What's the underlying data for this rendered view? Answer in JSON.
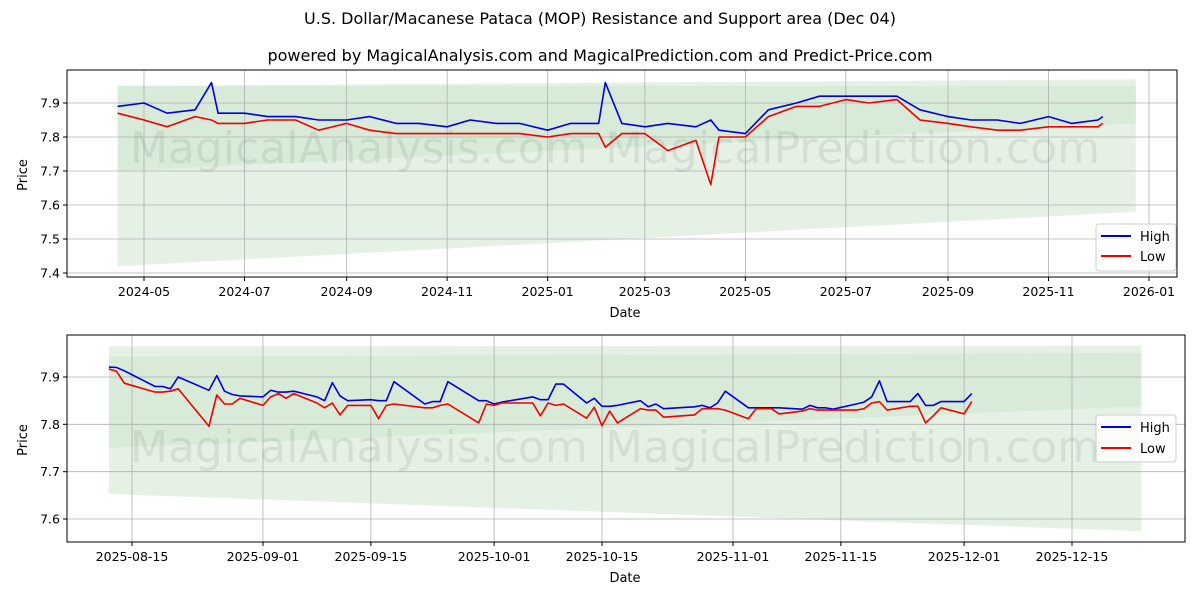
{
  "header": {
    "title": "U.S. Dollar/Macanese Pataca (MOP) Resistance and Support area (Dec 04)",
    "subtitle": "powered by MagicalAnalysis.com and MagicalPrediction.com and Predict-Price.com"
  },
  "watermarks": [
    "MagicalAnalysis.com",
    "MagicalPrediction.com"
  ],
  "colors": {
    "high": "#0000dd",
    "low": "#ee0000",
    "band_outer": "#e3f0e3",
    "band_inner": "#cce5cc",
    "grid": "#b0b0b0"
  },
  "chart_data": [
    {
      "type": "line",
      "title": "",
      "xlabel": "Date",
      "ylabel": "Price",
      "ylim": [
        7.39,
        7.99
      ],
      "grid": true,
      "legend_position": "lower right",
      "x_ticks": [
        "2024-05",
        "2024-07",
        "2024-09",
        "2024-11",
        "2025-01",
        "2025-03",
        "2025-05",
        "2025-07",
        "2025-09",
        "2025-11",
        "2026-01"
      ],
      "y_ticks": [
        "7.4",
        "7.5",
        "7.6",
        "7.7",
        "7.8",
        "7.9"
      ],
      "legend": [
        "High",
        "Low"
      ],
      "x": [
        "2024-04-15",
        "2024-05-01",
        "2024-05-15",
        "2024-06-01",
        "2024-06-11",
        "2024-06-15",
        "2024-07-01",
        "2024-07-15",
        "2024-08-01",
        "2024-08-15",
        "2024-09-01",
        "2024-09-15",
        "2024-10-01",
        "2024-10-15",
        "2024-11-01",
        "2024-11-15",
        "2024-12-01",
        "2024-12-15",
        "2025-01-01",
        "2025-01-15",
        "2025-02-01",
        "2025-02-05",
        "2025-02-15",
        "2025-03-01",
        "2025-03-15",
        "2025-04-01",
        "2025-04-10",
        "2025-04-15",
        "2025-05-01",
        "2025-05-15",
        "2025-06-01",
        "2025-06-15",
        "2025-07-01",
        "2025-07-15",
        "2025-08-01",
        "2025-08-15",
        "2025-09-01",
        "2025-09-15",
        "2025-10-01",
        "2025-10-15",
        "2025-11-01",
        "2025-11-15",
        "2025-12-01",
        "2025-12-04"
      ],
      "series": [
        {
          "name": "High",
          "values": [
            7.89,
            7.9,
            7.87,
            7.88,
            7.96,
            7.87,
            7.87,
            7.86,
            7.86,
            7.85,
            7.85,
            7.86,
            7.84,
            7.84,
            7.83,
            7.85,
            7.84,
            7.84,
            7.82,
            7.84,
            7.84,
            7.96,
            7.84,
            7.83,
            7.84,
            7.83,
            7.85,
            7.82,
            7.81,
            7.88,
            7.9,
            7.92,
            7.92,
            7.92,
            7.92,
            7.88,
            7.86,
            7.85,
            7.85,
            7.84,
            7.86,
            7.84,
            7.85,
            7.86
          ]
        },
        {
          "name": "Low",
          "values": [
            7.87,
            7.85,
            7.83,
            7.86,
            7.85,
            7.84,
            7.84,
            7.85,
            7.85,
            7.82,
            7.84,
            7.82,
            7.81,
            7.81,
            7.81,
            7.81,
            7.81,
            7.81,
            7.8,
            7.81,
            7.81,
            7.77,
            7.81,
            7.81,
            7.76,
            7.79,
            7.66,
            7.8,
            7.8,
            7.86,
            7.89,
            7.89,
            7.91,
            7.9,
            7.91,
            7.85,
            7.84,
            7.83,
            7.82,
            7.82,
            7.83,
            7.83,
            7.83,
            7.84
          ]
        }
      ],
      "bands": {
        "outer": {
          "x_start": "2024-04-15",
          "x_end": "2025-12-24",
          "upper": [
            7.95,
            7.97
          ],
          "lower": [
            7.42,
            7.58
          ]
        },
        "inner": {
          "x_start": "2024-04-15",
          "x_end": "2025-12-24",
          "upper": [
            7.95,
            7.95
          ],
          "lower": [
            7.7,
            7.84
          ]
        }
      }
    },
    {
      "type": "line",
      "title": "",
      "xlabel": "Date",
      "ylabel": "Price",
      "ylim": [
        7.555,
        7.985
      ],
      "grid": true,
      "legend_position": "center right",
      "x_ticks": [
        "2025-08-15",
        "2025-09-01",
        "2025-09-15",
        "2025-10-01",
        "2025-10-15",
        "2025-11-01",
        "2025-11-15",
        "2025-12-01",
        "2025-12-15"
      ],
      "y_ticks": [
        "7.6",
        "7.7",
        "7.8",
        "7.9"
      ],
      "legend": [
        "High",
        "Low"
      ],
      "x": [
        "2025-08-12",
        "2025-08-13",
        "2025-08-14",
        "2025-08-18",
        "2025-08-19",
        "2025-08-20",
        "2025-08-21",
        "2025-08-25",
        "2025-08-26",
        "2025-08-27",
        "2025-08-28",
        "2025-08-29",
        "2025-09-01",
        "2025-09-02",
        "2025-09-03",
        "2025-09-04",
        "2025-09-05",
        "2025-09-08",
        "2025-09-09",
        "2025-09-10",
        "2025-09-11",
        "2025-09-12",
        "2025-09-15",
        "2025-09-16",
        "2025-09-17",
        "2025-09-18",
        "2025-09-22",
        "2025-09-23",
        "2025-09-24",
        "2025-09-25",
        "2025-09-29",
        "2025-09-30",
        "2025-10-01",
        "2025-10-02",
        "2025-10-06",
        "2025-10-07",
        "2025-10-08",
        "2025-10-09",
        "2025-10-10",
        "2025-10-13",
        "2025-10-14",
        "2025-10-15",
        "2025-10-16",
        "2025-10-17",
        "2025-10-20",
        "2025-10-21",
        "2025-10-22",
        "2025-10-23",
        "2025-10-27",
        "2025-10-28",
        "2025-10-29",
        "2025-10-30",
        "2025-10-31",
        "2025-11-03",
        "2025-11-04",
        "2025-11-05",
        "2025-11-06",
        "2025-11-07",
        "2025-11-10",
        "2025-11-11",
        "2025-11-12",
        "2025-11-13",
        "2025-11-14",
        "2025-11-17",
        "2025-11-18",
        "2025-11-19",
        "2025-11-20",
        "2025-11-21",
        "2025-11-24",
        "2025-11-25",
        "2025-11-26",
        "2025-11-27",
        "2025-11-28",
        "2025-12-01",
        "2025-12-02"
      ],
      "series": [
        {
          "name": "High",
          "values": [
            7.921,
            7.92,
            7.913,
            7.88,
            7.88,
            7.875,
            7.9,
            7.872,
            7.903,
            7.87,
            7.863,
            7.86,
            7.858,
            7.872,
            7.868,
            7.868,
            7.87,
            7.858,
            7.85,
            7.888,
            7.86,
            7.85,
            7.852,
            7.85,
            7.85,
            7.89,
            7.843,
            7.848,
            7.848,
            7.89,
            7.85,
            7.85,
            7.843,
            7.847,
            7.858,
            7.852,
            7.852,
            7.885,
            7.885,
            7.845,
            7.855,
            7.838,
            7.838,
            7.84,
            7.85,
            7.837,
            7.843,
            7.833,
            7.837,
            7.84,
            7.835,
            7.845,
            7.87,
            7.835,
            7.835,
            7.835,
            7.835,
            7.835,
            7.832,
            7.84,
            7.835,
            7.835,
            7.832,
            7.843,
            7.847,
            7.858,
            7.892,
            7.848,
            7.848,
            7.865,
            7.84,
            7.84,
            7.848,
            7.848,
            7.865
          ]
        },
        {
          "name": "Low",
          "values": [
            7.917,
            7.912,
            7.887,
            7.868,
            7.868,
            7.87,
            7.875,
            7.796,
            7.862,
            7.843,
            7.843,
            7.855,
            7.84,
            7.858,
            7.865,
            7.855,
            7.865,
            7.845,
            7.835,
            7.845,
            7.82,
            7.84,
            7.84,
            7.812,
            7.84,
            7.843,
            7.835,
            7.835,
            7.84,
            7.843,
            7.803,
            7.843,
            7.84,
            7.845,
            7.845,
            7.818,
            7.845,
            7.84,
            7.843,
            7.813,
            7.836,
            7.797,
            7.828,
            7.803,
            7.833,
            7.83,
            7.83,
            7.815,
            7.82,
            7.833,
            7.833,
            7.833,
            7.83,
            7.812,
            7.833,
            7.833,
            7.833,
            7.822,
            7.828,
            7.833,
            7.83,
            7.83,
            7.83,
            7.83,
            7.833,
            7.845,
            7.848,
            7.83,
            7.838,
            7.838,
            7.803,
            7.818,
            7.835,
            7.822,
            7.848
          ]
        }
      ],
      "bands": {
        "outer": {
          "x_start": "2025-08-12",
          "x_end": "2025-12-24",
          "upper": [
            7.965,
            7.966
          ],
          "lower": [
            7.653,
            7.574
          ]
        },
        "inner": {
          "x_start": "2025-08-12",
          "x_end": "2025-12-24",
          "upper": [
            7.943,
            7.951
          ],
          "lower": [
            7.75,
            7.838
          ]
        }
      }
    }
  ]
}
